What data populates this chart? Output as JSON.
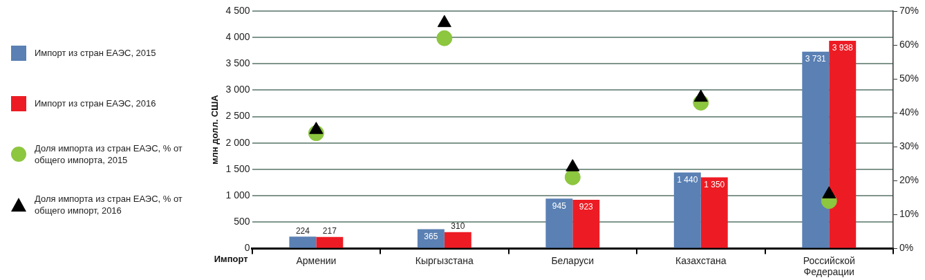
{
  "chart_data": {
    "type": "bar",
    "xlabel": "Импорт",
    "ylabel": "млн долл. США",
    "categories": [
      "Армении",
      "Кыргызстана",
      "Беларуси",
      "Казахстана",
      "Российской Федерации"
    ],
    "series": [
      {
        "name": "Импорт из стран ЕАЭС, 2015",
        "color": "#5a80b4",
        "values": [
          224,
          365,
          945,
          1440,
          3731
        ],
        "value_labels": [
          "224",
          "365",
          "945",
          "1 440",
          "3 731"
        ]
      },
      {
        "name": "Импорт из стран ЕАЭС, 2016",
        "color": "#ed1c24",
        "values": [
          217,
          310,
          923,
          1350,
          3938
        ],
        "value_labels": [
          "217",
          "310",
          "923",
          "1 350",
          "3 938"
        ]
      },
      {
        "name": "Доля импорта из стран ЕАЭС, % от общего импорта, 2015",
        "type": "scatter",
        "axis": "y2",
        "marker": "circle",
        "color": "#8dc63f",
        "x": [
          "Армении",
          "Кыргызстана",
          "Беларуси",
          "Казахстана",
          "Российской Федерации"
        ],
        "values": [
          34,
          62,
          21,
          43,
          14
        ]
      },
      {
        "name": "Доля импорта из стран ЕАЭС, % от общего импорт, 2016",
        "type": "scatter",
        "axis": "y2",
        "marker": "triangle",
        "color": "#000000",
        "x": [
          "Армении",
          "Кыргызстана",
          "Беларуси",
          "Казахстана",
          "Российской Федерации"
        ],
        "values": [
          35,
          66.5,
          24,
          44.5,
          16
        ]
      }
    ],
    "ylim": [
      0,
      4500
    ],
    "yticks": [
      {
        "value": 0,
        "label": "0"
      },
      {
        "value": 500,
        "label": "500"
      },
      {
        "value": 1000,
        "label": "1 000"
      },
      {
        "value": 1500,
        "label": "1 500"
      },
      {
        "value": 2000,
        "label": "2 000"
      },
      {
        "value": 2500,
        "label": "2 500"
      },
      {
        "value": 3000,
        "label": "3 000"
      },
      {
        "value": 3500,
        "label": "3 500"
      },
      {
        "value": 4000,
        "label": "4 000"
      },
      {
        "value": 4500,
        "label": "4 500"
      }
    ],
    "y2lim": [
      0,
      70
    ],
    "y2ticks": [
      {
        "value": 0,
        "label": "0%"
      },
      {
        "value": 10,
        "label": "10%"
      },
      {
        "value": 20,
        "label": "20%"
      },
      {
        "value": 30,
        "label": "30%"
      },
      {
        "value": 40,
        "label": "40%"
      },
      {
        "value": 50,
        "label": "50%"
      },
      {
        "value": 60,
        "label": "60%"
      },
      {
        "value": 70,
        "label": "70%"
      }
    ],
    "grid": "y",
    "legend": "left"
  }
}
